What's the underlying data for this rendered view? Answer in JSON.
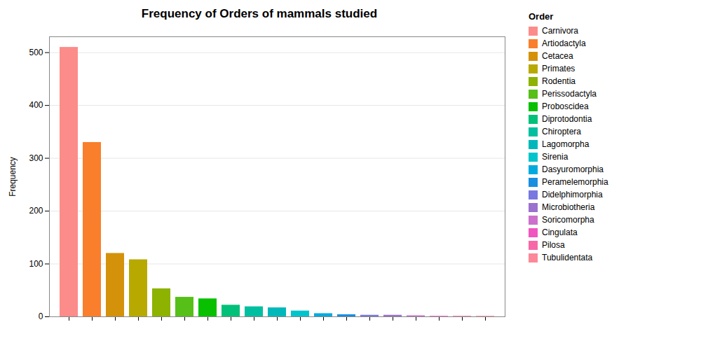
{
  "chart_data": {
    "type": "bar",
    "title": "Frequency of Orders of mammals studied",
    "ylabel": "Frequency",
    "legend_title": "Order",
    "categories": [
      "Carnivora",
      "Artiodactyla",
      "Cetacea",
      "Primates",
      "Rodentia",
      "Perissodactyla",
      "Proboscidea",
      "Diprotodontia",
      "Chiroptera",
      "Lagomorpha",
      "Sirenia",
      "Dasyuromorphia",
      "Peramelemorphia",
      "Didelphimorphia",
      "Microbiotheria",
      "Soricomorpha",
      "Cingulata",
      "Pilosa",
      "Tubulidentata"
    ],
    "values": [
      510,
      330,
      120,
      108,
      53,
      37,
      34,
      22,
      19,
      17,
      11,
      6,
      4,
      3,
      3,
      2,
      1,
      1,
      1
    ],
    "colors": [
      "#FC8C8A",
      "#F97F2C",
      "#D4920A",
      "#B8A900",
      "#8DB200",
      "#56BF18",
      "#08C000",
      "#00C07A",
      "#00BFA0",
      "#00B8BA",
      "#00C4CC",
      "#00AADF",
      "#1A8EE0",
      "#7878E0",
      "#9B70CF",
      "#CC70CC",
      "#F055C0",
      "#F868A8",
      "#FC8899"
    ],
    "ylim": [
      0,
      530
    ],
    "yticks": [
      0,
      100,
      200,
      300,
      400,
      500
    ],
    "grid": true,
    "legend": "right",
    "tick_labels": "y"
  }
}
